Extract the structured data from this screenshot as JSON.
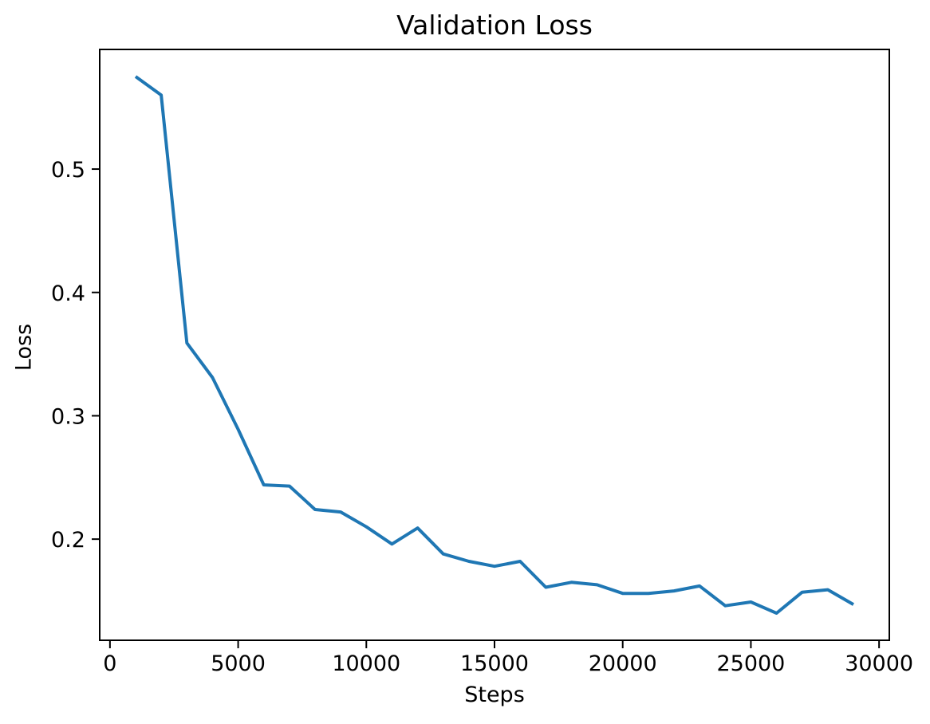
{
  "figure": {
    "title": "Validation Loss",
    "xlabel": "Steps",
    "ylabel": "Loss"
  },
  "chart_data": {
    "type": "line",
    "title": "Validation Loss",
    "xlabel": "Steps",
    "ylabel": "Loss",
    "grid": false,
    "legend": "none",
    "line_color": "#1f77b4",
    "axis_color": "#000000",
    "background_color": "#ffffff",
    "xlim": [
      -400,
      30400
    ],
    "ylim": [
      0.118,
      0.597
    ],
    "xticks": [
      0,
      5000,
      10000,
      15000,
      20000,
      25000,
      30000
    ],
    "xtick_labels": [
      "0",
      "5000",
      "10000",
      "15000",
      "20000",
      "25000",
      "30000"
    ],
    "yticks": [
      0.2,
      0.3,
      0.4,
      0.5
    ],
    "ytick_labels": [
      "0.2",
      "0.3",
      "0.4",
      "0.5"
    ],
    "x": [
      1000,
      2000,
      3000,
      4000,
      5000,
      6000,
      7000,
      8000,
      9000,
      10000,
      11000,
      12000,
      13000,
      14000,
      15000,
      16000,
      17000,
      18000,
      19000,
      20000,
      21000,
      22000,
      23000,
      24000,
      25000,
      26000,
      27000,
      28000,
      29000
    ],
    "series": [
      {
        "name": "validation-loss",
        "color": "#1f77b4",
        "values": [
          0.575,
          0.56,
          0.359,
          0.331,
          0.289,
          0.244,
          0.243,
          0.224,
          0.222,
          0.21,
          0.196,
          0.209,
          0.188,
          0.182,
          0.178,
          0.182,
          0.161,
          0.165,
          0.163,
          0.156,
          0.156,
          0.158,
          0.162,
          0.146,
          0.149,
          0.14,
          0.157,
          0.159,
          0.147
        ]
      }
    ]
  }
}
